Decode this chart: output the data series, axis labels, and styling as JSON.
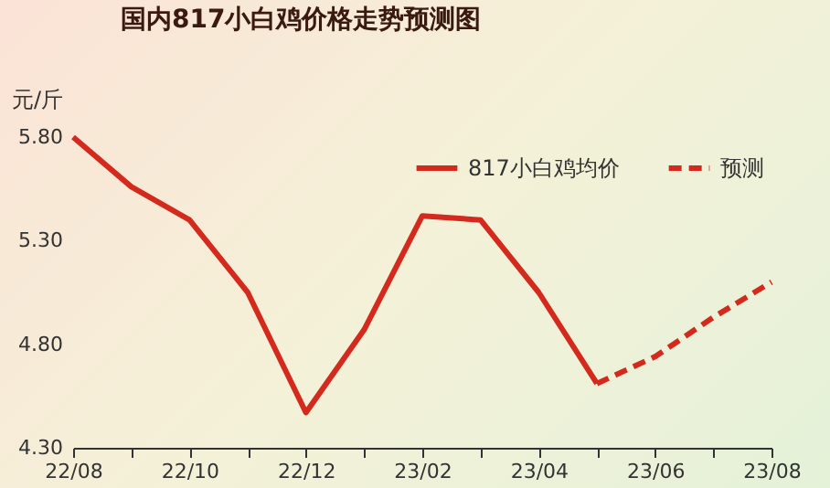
{
  "chart_data": {
    "type": "line",
    "title": "国内817小白鸡价格走势预测图",
    "ylabel": "元/斤",
    "categories": [
      "22/08",
      null,
      "22/10",
      null,
      "22/12",
      null,
      "23/02",
      null,
      "23/04",
      null,
      "23/06",
      null,
      "23/08"
    ],
    "series": [
      {
        "name": "817小白鸡均价",
        "color": "#d42a1e",
        "line_style": "solid",
        "values": [
          5.8,
          5.56,
          5.4,
          5.05,
          4.47,
          4.87,
          5.42,
          5.4,
          5.05,
          4.61,
          null,
          null,
          null
        ]
      },
      {
        "name": "预测",
        "color": "#d42a1e",
        "line_style": "dashed",
        "values": [
          null,
          null,
          null,
          null,
          null,
          null,
          null,
          null,
          null,
          4.61,
          4.74,
          4.93,
          5.1
        ]
      }
    ],
    "ylim": [
      4.3,
      5.8
    ],
    "yticks": [
      {
        "value": 4.3,
        "label": "4.30"
      },
      {
        "value": 4.8,
        "label": "4.80"
      },
      {
        "value": 5.3,
        "label": "5.30"
      },
      {
        "value": 5.8,
        "label": "5.80"
      }
    ],
    "grid": false,
    "legend": "top right"
  }
}
